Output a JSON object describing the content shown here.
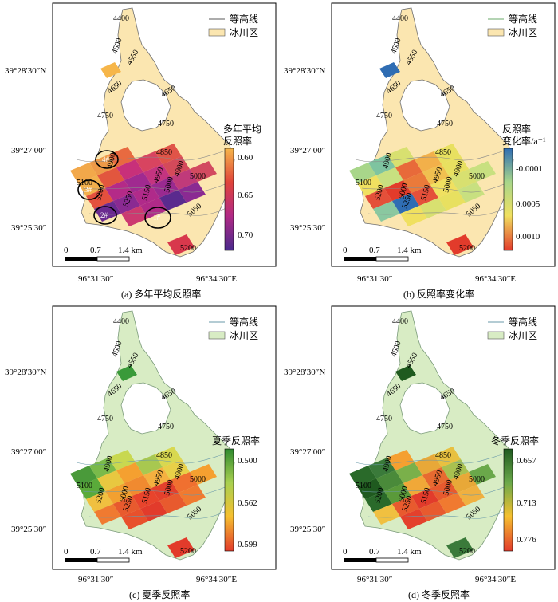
{
  "figure": {
    "latitude_labels": [
      "39°28′30″N",
      "39°27′00″",
      "39°25′30″"
    ],
    "longitude_labels": [
      "96°31′30″",
      "96°34′30″E"
    ],
    "legend": {
      "contour_label": "等高线",
      "glacier_label": "冰川区"
    },
    "scalebar": {
      "labels": [
        "0",
        "0.7",
        "1.4 km"
      ]
    },
    "contour_labels": {
      "top": [
        "4400",
        "4500",
        "4550",
        "4650",
        "4650",
        "4750",
        "4750",
        "4850"
      ],
      "lower_a": [
        "5100",
        "5200",
        "4900",
        "5250",
        "5150",
        "4950",
        "5000",
        "4900",
        "5000",
        "5050",
        "5200"
      ],
      "lower_b": [
        "4900",
        "5100",
        "5200",
        "5000",
        "5250",
        "5150",
        "4950",
        "5000",
        "4900",
        "5000",
        "5050",
        "5200"
      ]
    },
    "panels": [
      {
        "caption": "(a) 多年平均反照率",
        "colorbar_title": [
          "多年平均",
          "反照率"
        ],
        "colorbar_ticks": [
          "0.60",
          "0.65",
          "0.70"
        ],
        "colorbar_colors": [
          "#f6b64a",
          "#e0443a",
          "#b22a86",
          "#4a2a8c"
        ],
        "glacier_color": "#fbe6b0",
        "markers": [
          "4#",
          "3#",
          "2#",
          "1#"
        ]
      },
      {
        "caption": "(b) 反照率变化率",
        "colorbar_title": [
          "反照率",
          "变化率/a⁻¹"
        ],
        "colorbar_ticks": [
          "-0.0001",
          "0.0005",
          "0.0010"
        ],
        "colorbar_colors": [
          "#2f6db3",
          "#a8d68a",
          "#f0e060",
          "#e23b2b"
        ],
        "glacier_color": "#fbe6b0"
      },
      {
        "caption": "(c) 夏季反照率",
        "colorbar_title": [
          "夏季反照率"
        ],
        "colorbar_ticks": [
          "0.500",
          "0.562",
          "0.599"
        ],
        "colorbar_colors": [
          "#2e8a2e",
          "#a8d050",
          "#f5c030",
          "#e23b2b"
        ],
        "glacier_color": "#d8ecc4"
      },
      {
        "caption": "(d) 冬季反照率",
        "colorbar_title": [
          "冬季反照率"
        ],
        "colorbar_ticks": [
          "0.657",
          "0.713",
          "0.776"
        ],
        "colorbar_colors": [
          "#1f5a1f",
          "#6aa84a",
          "#f5c030",
          "#e23b2b"
        ],
        "glacier_color": "#d8ecc4"
      }
    ]
  }
}
